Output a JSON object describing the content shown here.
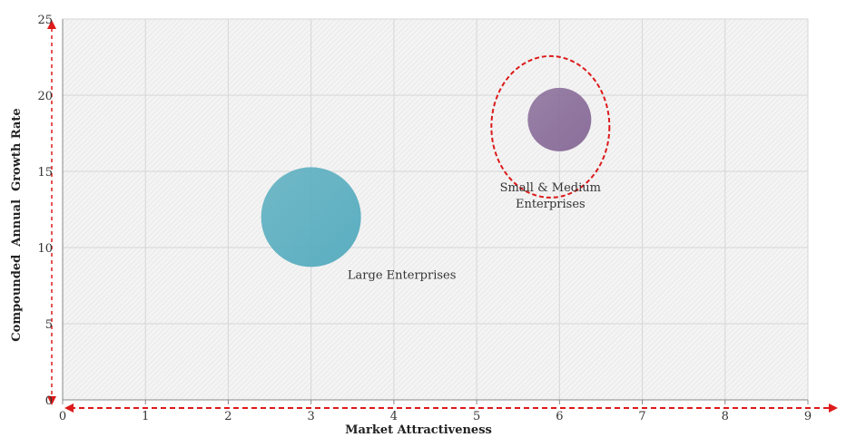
{
  "chart_data": {
    "type": "scatter",
    "title": "",
    "xlabel": "Market Attractiveness",
    "ylabel": "Compounded  Annual  Growth Rate",
    "xlim": [
      0,
      9
    ],
    "ylim": [
      0,
      25
    ],
    "xticks": [
      0,
      1,
      2,
      3,
      4,
      5,
      6,
      7,
      8,
      9
    ],
    "yticks": [
      0,
      5,
      10,
      15,
      20,
      25
    ],
    "grid": true,
    "series": [
      {
        "label_lines": [
          "Large Enterprises"
        ],
        "x": 3.0,
        "y": 12.0,
        "bubble_size": "large",
        "color": "#5aaec0",
        "highlighted": false
      },
      {
        "label_lines": [
          "Small & Medium",
          "Enterprises"
        ],
        "x": 6.0,
        "y": 18.4,
        "bubble_size": "medium",
        "color": "#8a6e9a",
        "highlighted": true
      }
    ],
    "highlight_color": "#dd1a1a",
    "axis_arrow_color": "#dd1a1a"
  }
}
